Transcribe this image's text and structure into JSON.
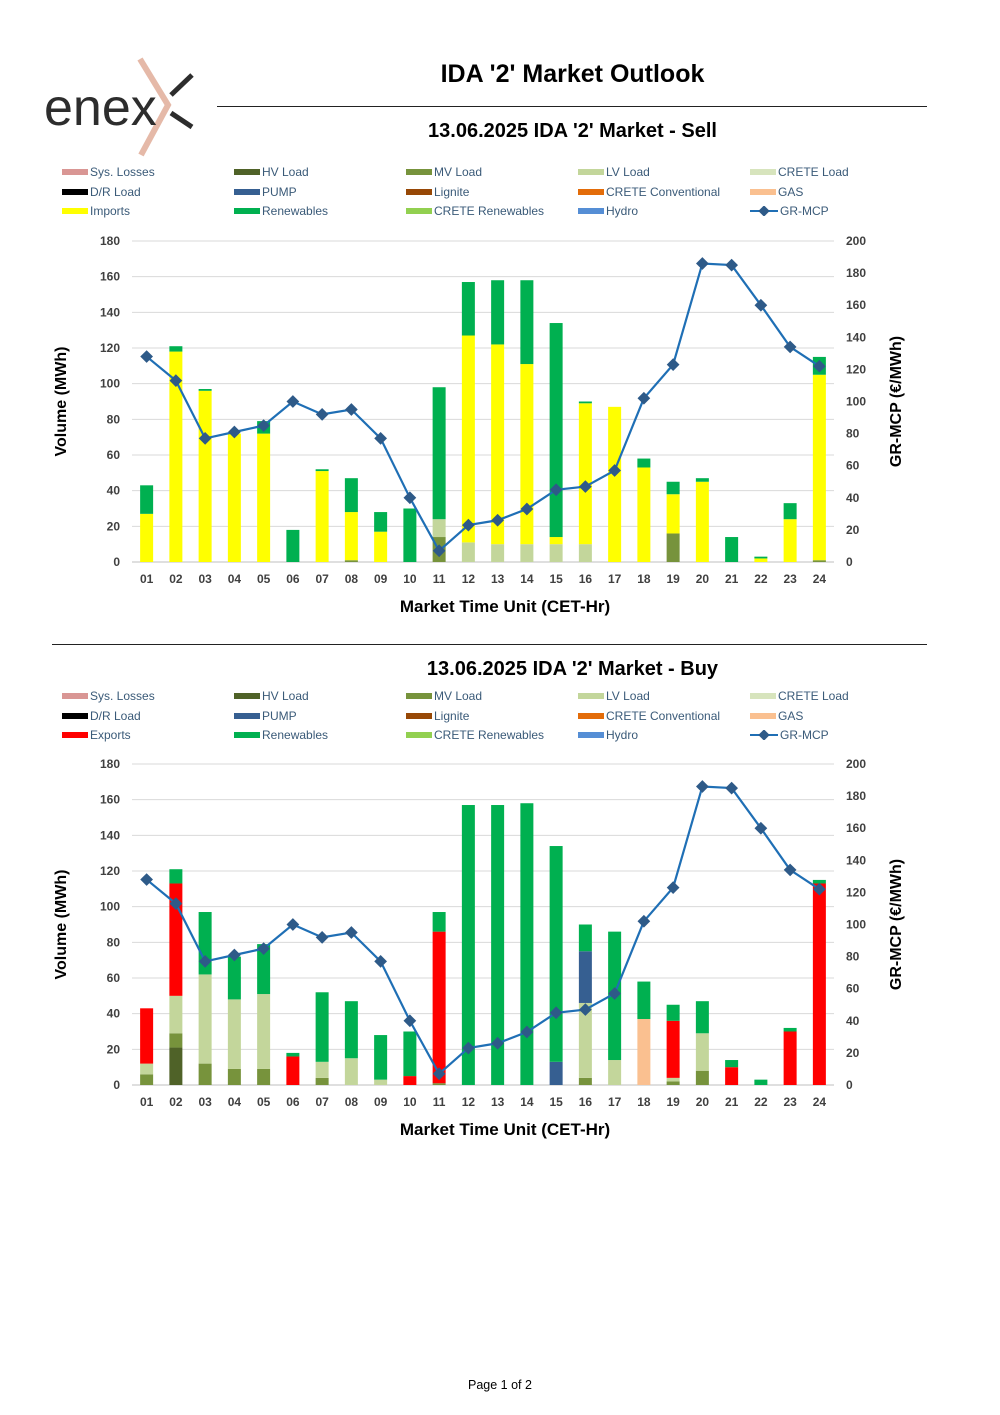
{
  "brand": {
    "logo_text": "enex",
    "accent_color": "#e5b9a8"
  },
  "header": {
    "title": "IDA '2' Market Outlook"
  },
  "footer": {
    "page": "Page 1 of 2"
  },
  "series_colors": {
    "Sys. Losses": "#d99694",
    "HV Load": "#4f6228",
    "MV Load": "#77933c",
    "LV Load": "#c3d69b",
    "CRETE Load": "#d7e4bd",
    "D/R Load": "#000000",
    "PUMP": "#365f91",
    "Lignite": "#974806",
    "CRETE Conventional": "#e36c09",
    "GAS": "#fac090",
    "Imports": "#ffff00",
    "Exports": "#ff0000",
    "Renewables": "#00b050",
    "CRETE Renewables": "#92d050",
    "Hydro": "#558ed5",
    "GR-MCP": "#1f6fb5"
  },
  "chart_data": [
    {
      "type": "bar",
      "title": "13.06.2025  IDA '2' Market - Sell",
      "xlabel": "Market Time Unit (CET-Hr)",
      "ylabel": "Volume (MWh)",
      "y2label": "GR-MCP (€/MWh)",
      "ylim": [
        0,
        180
      ],
      "y_ticks": [
        0,
        20,
        40,
        60,
        80,
        100,
        120,
        140,
        160,
        180
      ],
      "y2lim": [
        0,
        200
      ],
      "y2_ticks": [
        0,
        20,
        40,
        60,
        80,
        100,
        120,
        140,
        160,
        180,
        200
      ],
      "grid": true,
      "stacked": true,
      "legend": "top",
      "legend_entries": [
        "Sys. Losses",
        "HV Load",
        "MV Load",
        "LV Load",
        "CRETE Load",
        "D/R Load",
        "PUMP",
        "Lignite",
        "CRETE Conventional",
        "GAS",
        "Imports",
        "Renewables",
        "CRETE Renewables",
        "Hydro",
        "GR-MCP"
      ],
      "categories": [
        "01",
        "02",
        "03",
        "04",
        "05",
        "06",
        "07",
        "08",
        "09",
        "10",
        "11",
        "12",
        "13",
        "14",
        "15",
        "16",
        "17",
        "18",
        "19",
        "20",
        "21",
        "22",
        "23",
        "24"
      ],
      "series": [
        {
          "name": "MV Load",
          "values": [
            0,
            0,
            0,
            0,
            0,
            0,
            0,
            1,
            0,
            0,
            14,
            0,
            0,
            0,
            0,
            0,
            0,
            0,
            16,
            0,
            0,
            0,
            0,
            1
          ]
        },
        {
          "name": "LV Load",
          "values": [
            0,
            0,
            0,
            0,
            0,
            0,
            0,
            0,
            0,
            0,
            10,
            11,
            10,
            10,
            10,
            10,
            0,
            0,
            0,
            0,
            0,
            0,
            0,
            0
          ]
        },
        {
          "name": "Imports",
          "values": [
            27,
            118,
            96,
            72,
            72,
            0,
            51,
            27,
            17,
            0,
            0,
            116,
            112,
            101,
            4,
            79,
            87,
            53,
            22,
            45,
            0,
            2,
            24,
            104
          ]
        },
        {
          "name": "Renewables",
          "values": [
            16,
            3,
            1,
            0,
            7,
            18,
            1,
            19,
            11,
            30,
            74,
            30,
            36,
            47,
            120,
            1,
            0,
            5,
            7,
            2,
            14,
            1,
            9,
            10
          ]
        },
        {
          "name": "GR-MCP",
          "axis": "secondary",
          "values": [
            128,
            113,
            77,
            81,
            85,
            100,
            92,
            95,
            77,
            40,
            7,
            23,
            26,
            33,
            45,
            47,
            57,
            102,
            123,
            186,
            185,
            160,
            134,
            122
          ]
        }
      ]
    },
    {
      "type": "bar",
      "title": "13.06.2025  IDA '2' Market - Buy",
      "xlabel": "Market Time Unit (CET-Hr)",
      "ylabel": "Volume (MWh)",
      "y2label": "GR-MCP (€/MWh)",
      "ylim": [
        0,
        180
      ],
      "y_ticks": [
        0,
        20,
        40,
        60,
        80,
        100,
        120,
        140,
        160,
        180
      ],
      "y2lim": [
        0,
        200
      ],
      "y2_ticks": [
        0,
        20,
        40,
        60,
        80,
        100,
        120,
        140,
        160,
        180,
        200
      ],
      "grid": true,
      "stacked": true,
      "legend": "top",
      "legend_entries": [
        "Sys. Losses",
        "HV Load",
        "MV Load",
        "LV Load",
        "CRETE Load",
        "D/R Load",
        "PUMP",
        "Lignite",
        "CRETE Conventional",
        "GAS",
        "Exports",
        "Renewables",
        "CRETE Renewables",
        "Hydro",
        "GR-MCP"
      ],
      "categories": [
        "01",
        "02",
        "03",
        "04",
        "05",
        "06",
        "07",
        "08",
        "09",
        "10",
        "11",
        "12",
        "13",
        "14",
        "15",
        "16",
        "17",
        "18",
        "19",
        "20",
        "21",
        "22",
        "23",
        "24"
      ],
      "series": [
        {
          "name": "HV Load",
          "values": [
            0,
            21,
            0,
            0,
            0,
            0,
            0,
            0,
            0,
            0,
            0,
            0,
            0,
            0,
            0,
            0,
            0,
            0,
            0,
            0,
            0,
            0,
            0,
            0
          ]
        },
        {
          "name": "MV Load",
          "values": [
            6,
            8,
            12,
            9,
            9,
            0,
            4,
            0,
            0,
            0,
            1,
            0,
            0,
            0,
            0,
            4,
            0,
            0,
            2,
            8,
            0,
            0,
            0,
            0
          ]
        },
        {
          "name": "LV Load",
          "values": [
            6,
            21,
            50,
            39,
            42,
            0,
            9,
            15,
            3,
            0,
            0,
            0,
            0,
            0,
            0,
            42,
            14,
            0,
            2,
            21,
            0,
            0,
            0,
            0
          ]
        },
        {
          "name": "PUMP",
          "values": [
            0,
            0,
            0,
            0,
            0,
            0,
            0,
            0,
            0,
            0,
            0,
            0,
            0,
            0,
            13,
            29,
            0,
            0,
            0,
            0,
            0,
            0,
            0,
            0
          ]
        },
        {
          "name": "GAS",
          "values": [
            0,
            0,
            0,
            0,
            0,
            0,
            0,
            0,
            0,
            0,
            0,
            0,
            0,
            0,
            0,
            0,
            0,
            37,
            0,
            0,
            0,
            0,
            0,
            0
          ]
        },
        {
          "name": "Exports",
          "values": [
            31,
            63,
            0,
            0,
            0,
            16,
            0,
            0,
            0,
            5,
            85,
            0,
            0,
            0,
            0,
            0,
            0,
            0,
            32,
            0,
            10,
            0,
            30,
            113
          ]
        },
        {
          "name": "Renewables",
          "values": [
            0,
            8,
            35,
            24,
            28,
            2,
            39,
            32,
            25,
            25,
            11,
            157,
            157,
            158,
            121,
            15,
            72,
            21,
            9,
            18,
            4,
            3,
            2,
            2
          ]
        },
        {
          "name": "GR-MCP",
          "axis": "secondary",
          "values": [
            128,
            113,
            77,
            81,
            85,
            100,
            92,
            95,
            77,
            40,
            7,
            23,
            26,
            33,
            45,
            47,
            57,
            102,
            123,
            186,
            185,
            160,
            134,
            122
          ]
        }
      ]
    }
  ]
}
